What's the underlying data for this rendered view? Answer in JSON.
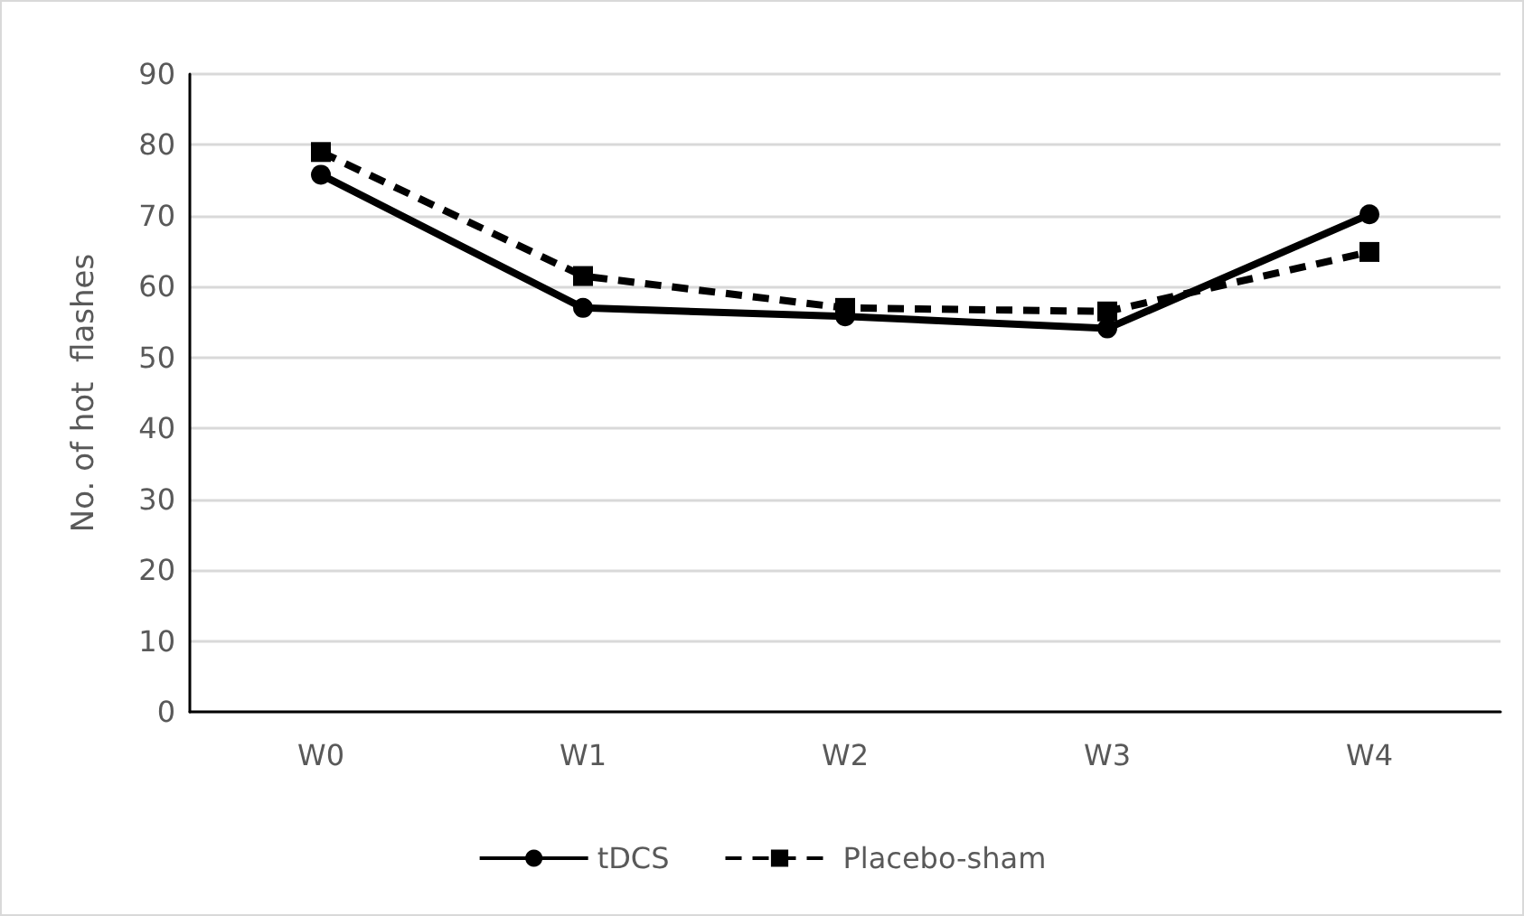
{
  "chart_data": {
    "type": "line",
    "ylabel": "No. of hot  flashes",
    "categories": [
      "W0",
      "W1",
      "W2",
      "W3",
      "W4"
    ],
    "series": [
      {
        "name": "tDCS",
        "color": "#000000",
        "marker": "circle",
        "line_style": "solid",
        "values": [
          75.8,
          57.0,
          55.8,
          54.1,
          70.2
        ]
      },
      {
        "name": "Placebo-sham",
        "color": "#000000",
        "marker": "square",
        "line_style": "dashed",
        "values": [
          79.0,
          61.5,
          57.0,
          56.5,
          64.9
        ]
      }
    ],
    "ylim": [
      0,
      90
    ],
    "yticks": [
      0,
      10,
      20,
      30,
      40,
      50,
      60,
      70,
      80,
      90
    ],
    "grid": "y",
    "legend": "bottom"
  }
}
